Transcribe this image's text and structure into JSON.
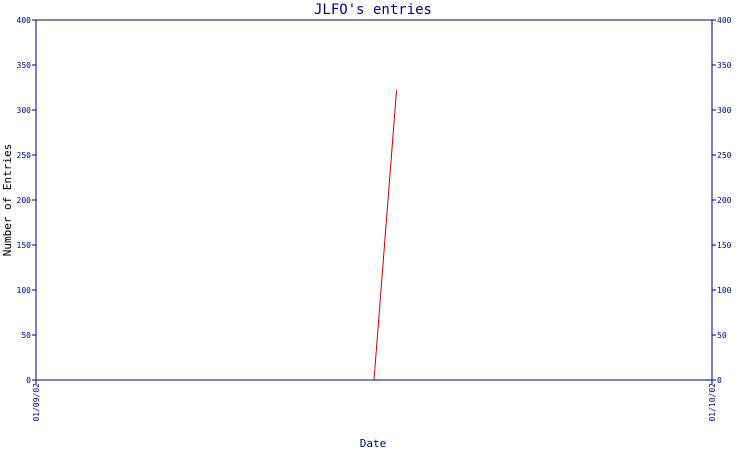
{
  "chart_data": {
    "type": "line",
    "title": "JLFO's entries",
    "xlabel": "Date",
    "ylabel": "Number of Entries",
    "x_tick_labels": [
      "01/09/02",
      "01/10/02"
    ],
    "y_ticks": [
      0,
      50,
      100,
      150,
      200,
      250,
      300,
      350,
      400
    ],
    "y_tick_labels": [
      "0",
      "50",
      "100",
      "150",
      "200",
      "250",
      "300",
      "350",
      "400"
    ],
    "ylim": [
      0,
      400
    ],
    "xlim": [
      "2002-09-01",
      "2002-10-01"
    ],
    "grid": false,
    "right_axis": true,
    "series": [
      {
        "color": "#cc0000",
        "x": [
          "2002-09-16",
          "2002-09-17"
        ],
        "values": [
          0,
          322
        ]
      }
    ],
    "colors": {
      "axis": "#000080",
      "line": "#cc0000",
      "background": "#ffffff"
    }
  }
}
